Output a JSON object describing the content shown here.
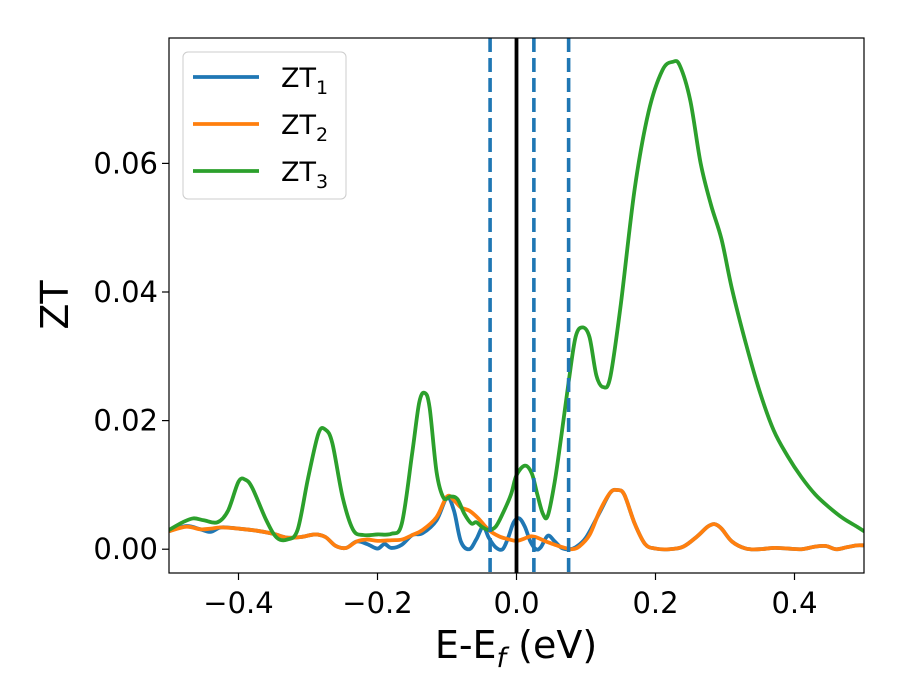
{
  "chart_data": {
    "type": "line",
    "xlabel": {
      "main": "E-E",
      "sub": "f",
      "suffix": " (eV)"
    },
    "ylabel": "ZT",
    "xlim": [
      -0.5,
      0.5
    ],
    "ylim": [
      -0.0037,
      0.0795
    ],
    "xticks": [
      -0.4,
      -0.2,
      0.0,
      0.2,
      0.4
    ],
    "xtick_labels": [
      "−0.4",
      "−0.2",
      "0.0",
      "0.2",
      "0.4"
    ],
    "yticks": [
      0.0,
      0.02,
      0.04,
      0.06
    ],
    "ytick_labels": [
      "0.00",
      "0.02",
      "0.04",
      "0.06"
    ],
    "grid": false,
    "legend_position": "top-left",
    "vlines": [
      {
        "x": 0.0,
        "style": "solid",
        "color": "#000000"
      },
      {
        "x": -0.038,
        "style": "dashed",
        "color": "#1f77b4"
      },
      {
        "x": 0.025,
        "style": "dashed",
        "color": "#1f77b4"
      },
      {
        "x": 0.075,
        "style": "dashed",
        "color": "#1f77b4"
      }
    ],
    "series": [
      {
        "name": "ZT",
        "sub": "1",
        "color": "#1f77b4",
        "points": [
          [
            -0.5,
            0.0028
          ],
          [
            -0.475,
            0.0036
          ],
          [
            -0.455,
            0.0031
          ],
          [
            -0.44,
            0.0027
          ],
          [
            -0.425,
            0.0034
          ],
          [
            -0.4,
            0.0032
          ],
          [
            -0.375,
            0.0029
          ],
          [
            -0.35,
            0.0024
          ],
          [
            -0.33,
            0.0018
          ],
          [
            -0.31,
            0.0019
          ],
          [
            -0.29,
            0.0023
          ],
          [
            -0.275,
            0.0019
          ],
          [
            -0.26,
            0.0005
          ],
          [
            -0.245,
            0.0002
          ],
          [
            -0.23,
            0.0012
          ],
          [
            -0.215,
            0.0008
          ],
          [
            -0.2,
            0.0001
          ],
          [
            -0.19,
            0.0008
          ],
          [
            -0.18,
            0.0002
          ],
          [
            -0.165,
            0.0007
          ],
          [
            -0.15,
            0.0022
          ],
          [
            -0.135,
            0.0025
          ],
          [
            -0.115,
            0.0045
          ],
          [
            -0.1,
            0.008
          ],
          [
            -0.09,
            0.006
          ],
          [
            -0.08,
            0.0012
          ],
          [
            -0.068,
            0.0
          ],
          [
            -0.058,
            0.0015
          ],
          [
            -0.048,
            0.0035
          ],
          [
            -0.04,
            0.0018
          ],
          [
            -0.03,
            0.0003
          ],
          [
            -0.02,
            0.0
          ],
          [
            -0.012,
            0.0018
          ],
          [
            -0.004,
            0.0042
          ],
          [
            0.004,
            0.0048
          ],
          [
            0.012,
            0.0035
          ],
          [
            0.02,
            0.0012
          ],
          [
            0.028,
            0.0
          ],
          [
            0.035,
            0.0003
          ],
          [
            0.045,
            0.0021
          ],
          [
            0.055,
            0.0012
          ],
          [
            0.065,
            0.0002
          ],
          [
            0.075,
            0.0
          ],
          [
            0.085,
            0.0003
          ],
          [
            0.1,
            0.0018
          ],
          [
            0.12,
            0.0058
          ],
          [
            0.135,
            0.0088
          ],
          [
            0.145,
            0.0092
          ],
          [
            0.155,
            0.0085
          ],
          [
            0.17,
            0.004
          ],
          [
            0.185,
            0.0008
          ],
          [
            0.2,
            0.0001
          ],
          [
            0.22,
            0.0
          ],
          [
            0.24,
            0.0004
          ],
          [
            0.26,
            0.002
          ],
          [
            0.275,
            0.0035
          ],
          [
            0.285,
            0.0039
          ],
          [
            0.295,
            0.0032
          ],
          [
            0.31,
            0.0012
          ],
          [
            0.33,
            0.0001
          ],
          [
            0.35,
            0.0
          ],
          [
            0.37,
            0.0002
          ],
          [
            0.39,
            0.0001
          ],
          [
            0.41,
            0.0
          ],
          [
            0.43,
            0.0004
          ],
          [
            0.445,
            0.0005
          ],
          [
            0.46,
            0.0
          ],
          [
            0.475,
            0.0003
          ],
          [
            0.49,
            0.0006
          ],
          [
            0.5,
            0.0006
          ]
        ]
      },
      {
        "name": "ZT",
        "sub": "2",
        "color": "#ff7f0e",
        "points": [
          [
            -0.5,
            0.0028
          ],
          [
            -0.475,
            0.0035
          ],
          [
            -0.455,
            0.0031
          ],
          [
            -0.44,
            0.0032
          ],
          [
            -0.425,
            0.0034
          ],
          [
            -0.4,
            0.0032
          ],
          [
            -0.375,
            0.0029
          ],
          [
            -0.35,
            0.0024
          ],
          [
            -0.33,
            0.0018
          ],
          [
            -0.31,
            0.0019
          ],
          [
            -0.29,
            0.0023
          ],
          [
            -0.275,
            0.0019
          ],
          [
            -0.26,
            0.0005
          ],
          [
            -0.245,
            0.0002
          ],
          [
            -0.23,
            0.0012
          ],
          [
            -0.215,
            0.0015
          ],
          [
            -0.2,
            0.0013
          ],
          [
            -0.18,
            0.0014
          ],
          [
            -0.165,
            0.0015
          ],
          [
            -0.15,
            0.0022
          ],
          [
            -0.135,
            0.003
          ],
          [
            -0.115,
            0.005
          ],
          [
            -0.1,
            0.0082
          ],
          [
            -0.09,
            0.0076
          ],
          [
            -0.08,
            0.0065
          ],
          [
            -0.068,
            0.006
          ],
          [
            -0.055,
            0.0048
          ],
          [
            -0.04,
            0.003
          ],
          [
            -0.025,
            0.002
          ],
          [
            -0.01,
            0.0015
          ],
          [
            0.0,
            0.0013
          ],
          [
            0.01,
            0.0016
          ],
          [
            0.02,
            0.002
          ],
          [
            0.03,
            0.0018
          ],
          [
            0.04,
            0.0013
          ],
          [
            0.05,
            0.0009
          ],
          [
            0.06,
            0.0005
          ],
          [
            0.07,
            0.0002
          ],
          [
            0.08,
            0.0
          ],
          [
            0.09,
            0.0004
          ],
          [
            0.105,
            0.0022
          ],
          [
            0.12,
            0.006
          ],
          [
            0.135,
            0.0088
          ],
          [
            0.145,
            0.0092
          ],
          [
            0.155,
            0.0085
          ],
          [
            0.17,
            0.004
          ],
          [
            0.185,
            0.0008
          ],
          [
            0.2,
            0.0001
          ],
          [
            0.22,
            0.0
          ],
          [
            0.24,
            0.0004
          ],
          [
            0.26,
            0.002
          ],
          [
            0.275,
            0.0035
          ],
          [
            0.285,
            0.0039
          ],
          [
            0.295,
            0.0032
          ],
          [
            0.31,
            0.0012
          ],
          [
            0.33,
            0.0001
          ],
          [
            0.35,
            0.0
          ],
          [
            0.37,
            0.0002
          ],
          [
            0.39,
            0.0001
          ],
          [
            0.41,
            0.0
          ],
          [
            0.43,
            0.0004
          ],
          [
            0.445,
            0.0005
          ],
          [
            0.46,
            0.0
          ],
          [
            0.475,
            0.0003
          ],
          [
            0.49,
            0.0006
          ],
          [
            0.5,
            0.0006
          ]
        ]
      },
      {
        "name": "ZT",
        "sub": "3",
        "color": "#2ca02c",
        "points": [
          [
            -0.5,
            0.003
          ],
          [
            -0.48,
            0.0042
          ],
          [
            -0.465,
            0.0048
          ],
          [
            -0.45,
            0.0045
          ],
          [
            -0.43,
            0.0042
          ],
          [
            -0.415,
            0.006
          ],
          [
            -0.4,
            0.0105
          ],
          [
            -0.39,
            0.0108
          ],
          [
            -0.38,
            0.0095
          ],
          [
            -0.36,
            0.0045
          ],
          [
            -0.345,
            0.0018
          ],
          [
            -0.33,
            0.0015
          ],
          [
            -0.315,
            0.003
          ],
          [
            -0.3,
            0.011
          ],
          [
            -0.285,
            0.018
          ],
          [
            -0.275,
            0.0186
          ],
          [
            -0.265,
            0.0165
          ],
          [
            -0.25,
            0.008
          ],
          [
            -0.235,
            0.003
          ],
          [
            -0.22,
            0.0022
          ],
          [
            -0.2,
            0.0023
          ],
          [
            -0.18,
            0.0024
          ],
          [
            -0.165,
            0.004
          ],
          [
            -0.15,
            0.015
          ],
          [
            -0.14,
            0.0228
          ],
          [
            -0.132,
            0.0243
          ],
          [
            -0.125,
            0.022
          ],
          [
            -0.115,
            0.012
          ],
          [
            -0.105,
            0.008
          ],
          [
            -0.095,
            0.0082
          ],
          [
            -0.085,
            0.0078
          ],
          [
            -0.075,
            0.0055
          ],
          [
            -0.065,
            0.004
          ],
          [
            -0.058,
            0.0042
          ],
          [
            -0.05,
            0.0035
          ],
          [
            -0.04,
            0.003
          ],
          [
            -0.03,
            0.0035
          ],
          [
            -0.02,
            0.0055
          ],
          [
            -0.008,
            0.0085
          ],
          [
            0.0,
            0.0115
          ],
          [
            0.012,
            0.013
          ],
          [
            0.022,
            0.0118
          ],
          [
            0.03,
            0.0085
          ],
          [
            0.038,
            0.0055
          ],
          [
            0.045,
            0.0052
          ],
          [
            0.055,
            0.0105
          ],
          [
            0.065,
            0.018
          ],
          [
            0.075,
            0.026
          ],
          [
            0.085,
            0.033
          ],
          [
            0.095,
            0.0345
          ],
          [
            0.105,
            0.033
          ],
          [
            0.115,
            0.027
          ],
          [
            0.125,
            0.0252
          ],
          [
            0.135,
            0.0268
          ],
          [
            0.15,
            0.038
          ],
          [
            0.17,
            0.056
          ],
          [
            0.19,
            0.068
          ],
          [
            0.21,
            0.0745
          ],
          [
            0.225,
            0.0758
          ],
          [
            0.235,
            0.0752
          ],
          [
            0.25,
            0.0698
          ],
          [
            0.265,
            0.06
          ],
          [
            0.28,
            0.0535
          ],
          [
            0.295,
            0.0482
          ],
          [
            0.31,
            0.0405
          ],
          [
            0.33,
            0.032
          ],
          [
            0.35,
            0.0245
          ],
          [
            0.37,
            0.0185
          ],
          [
            0.39,
            0.0145
          ],
          [
            0.41,
            0.0112
          ],
          [
            0.43,
            0.0085
          ],
          [
            0.45,
            0.0065
          ],
          [
            0.47,
            0.0048
          ],
          [
            0.49,
            0.0035
          ],
          [
            0.5,
            0.0028
          ]
        ]
      }
    ]
  }
}
